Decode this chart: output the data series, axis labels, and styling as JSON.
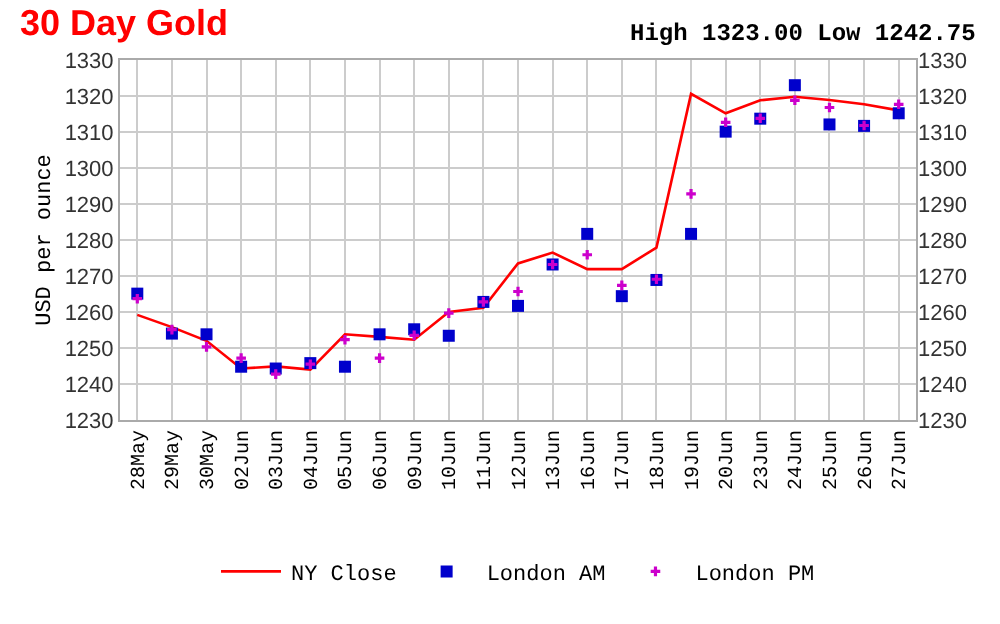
{
  "chart_data": {
    "type": "line",
    "title": "30 Day Gold",
    "annotations": [
      "High 1323.00 Low 1242.75"
    ],
    "ylabel": "USD per ounce",
    "categories": [
      "28May",
      "29May",
      "30May",
      "02Jun",
      "03Jun",
      "04Jun",
      "05Jun",
      "06Jun",
      "09Jun",
      "10Jun",
      "11Jun",
      "12Jun",
      "13Jun",
      "16Jun",
      "17Jun",
      "18Jun",
      "19Jun",
      "20Jun",
      "23Jun",
      "24Jun",
      "25Jun",
      "26Jun",
      "27Jun"
    ],
    "series": [
      {
        "name": "NY Close",
        "color": "#ff0000",
        "marker": "none",
        "values": [
          1259.2,
          1255.8,
          1252.0,
          1244.3,
          1244.9,
          1244.0,
          1253.8,
          1253.1,
          1252.3,
          1260.0,
          1261.2,
          1273.5,
          1276.5,
          1271.9,
          1271.9,
          1277.9,
          1320.6,
          1315.2,
          1318.8,
          1319.8,
          1318.9,
          1317.7,
          1316.0
        ]
      },
      {
        "name": "London AM",
        "type": "scatter",
        "color": "#0000cc",
        "marker": "square",
        "values": [
          1265.1,
          1254.0,
          1253.8,
          1244.8,
          1244.3,
          1245.8,
          1244.8,
          1253.8,
          1255.2,
          1253.4,
          1262.8,
          1261.7,
          1273.2,
          1281.7,
          1264.4,
          1268.9,
          1281.7,
          1310.1,
          1313.7,
          1323.0,
          1312.1,
          1311.7,
          1315.2
        ]
      },
      {
        "name": "London PM",
        "type": "scatter",
        "color": "#cc00cc",
        "marker": "cross",
        "values": [
          1263.7,
          1255.1,
          1250.3,
          1247.2,
          1242.75,
          1245.5,
          1252.3,
          1247.2,
          1253.5,
          1259.7,
          1262.8,
          1265.7,
          1273.2,
          1275.9,
          1267.4,
          1269.1,
          1292.8,
          1312.7,
          1313.8,
          1318.8,
          1316.8,
          1311.8,
          1317.7
        ]
      }
    ],
    "ylim": [
      1230,
      1330
    ],
    "yticks": [
      1230,
      1240,
      1250,
      1260,
      1270,
      1280,
      1290,
      1300,
      1310,
      1320,
      1330
    ],
    "y2lim": [
      1230,
      1330
    ],
    "y2ticks": [
      1230,
      1240,
      1250,
      1260,
      1270,
      1280,
      1290,
      1300,
      1310,
      1320,
      1330
    ],
    "grid": true,
    "legend": "bottom"
  }
}
